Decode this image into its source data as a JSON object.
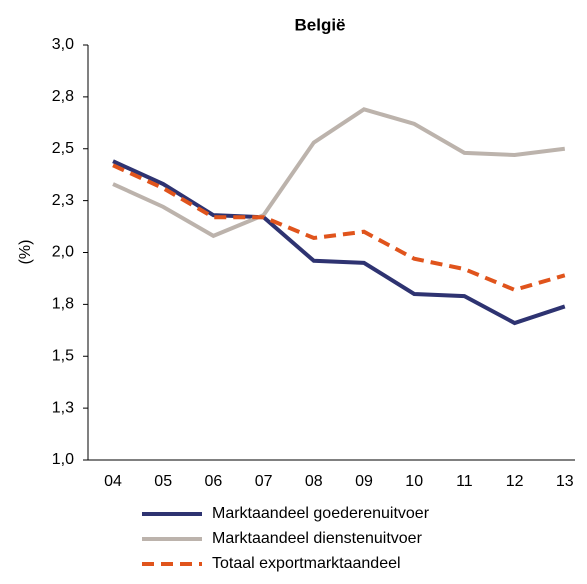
{
  "chart_data": {
    "type": "line",
    "title": "België",
    "y_label": "(%)",
    "categories": [
      "04",
      "05",
      "06",
      "07",
      "08",
      "09",
      "10",
      "11",
      "12",
      "13"
    ],
    "series": [
      {
        "name": "Marktaandeel goederenuitvoer",
        "color": "#2e3371",
        "dash": false,
        "values": [
          2.44,
          2.33,
          2.18,
          2.17,
          1.96,
          1.95,
          1.8,
          1.79,
          1.66,
          1.74
        ]
      },
      {
        "name": "Marktaandeel dienstenuitvoer",
        "color": "#bcb3ac",
        "dash": false,
        "values": [
          2.33,
          2.22,
          2.08,
          2.18,
          2.53,
          2.69,
          2.62,
          2.48,
          2.47,
          2.5
        ]
      },
      {
        "name": "Totaal exportmarktaandeel",
        "color": "#e0541c",
        "dash": true,
        "values": [
          2.42,
          2.31,
          2.17,
          2.17,
          2.07,
          2.1,
          1.97,
          1.92,
          1.82,
          1.89
        ]
      }
    ],
    "ylim": [
      1.0,
      3.0
    ],
    "yticks": [
      {
        "value": 1.0,
        "label": "1,0"
      },
      {
        "value": 1.25,
        "label": "1,3"
      },
      {
        "value": 1.5,
        "label": "1,5"
      },
      {
        "value": 1.75,
        "label": "1,8"
      },
      {
        "value": 2.0,
        "label": "2,0"
      },
      {
        "value": 2.25,
        "label": "2,3"
      },
      {
        "value": 2.5,
        "label": "2,5"
      },
      {
        "value": 2.75,
        "label": "2,8"
      },
      {
        "value": 3.0,
        "label": "3,0"
      }
    ],
    "grid": false
  }
}
